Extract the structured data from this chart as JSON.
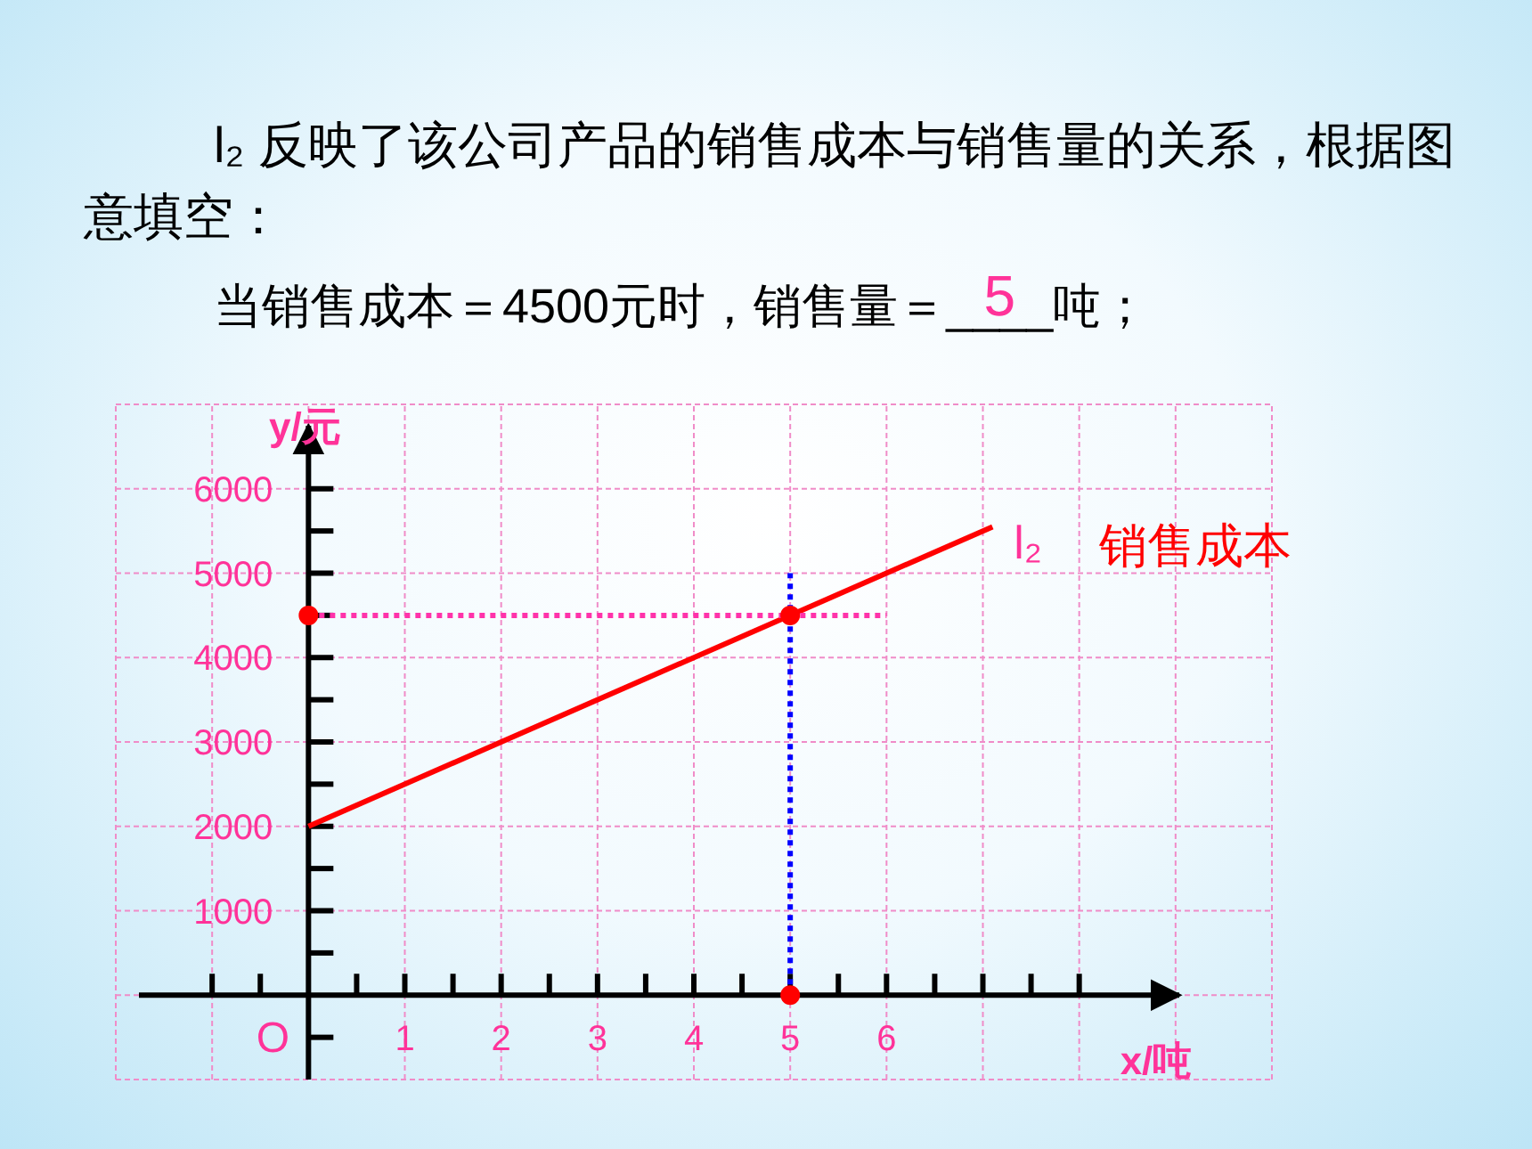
{
  "chart_data": {
    "type": "line",
    "title": "l₂ 反映了该公司产品的销售成本与销售量的关系，根据图意填空：",
    "subtitle": "当销售成本＝4500元时，销售量＝____吨；",
    "xlabel": "x/吨",
    "ylabel": "y/元",
    "annotations": [
      "5",
      "销售成本",
      "O"
    ],
    "xlim": [
      -2,
      10
    ],
    "ylim": [
      -1000,
      7000
    ],
    "xticks": [
      {
        "value": -1,
        "label": null
      },
      {
        "value": -0.5,
        "label": null
      },
      {
        "value": 0,
        "label": null
      },
      {
        "value": 0.5,
        "label": null
      },
      1,
      {
        "value": 1.5,
        "label": null
      },
      2,
      {
        "value": 2.5,
        "label": null
      },
      3,
      {
        "value": 3.5,
        "label": null
      },
      4,
      {
        "value": 4.5,
        "label": null
      },
      5,
      {
        "value": 5.5,
        "label": null
      },
      6,
      {
        "value": 6.5,
        "label": null
      },
      {
        "value": 7,
        "label": null
      },
      {
        "value": 7.5,
        "label": null
      },
      {
        "value": 8,
        "label": null
      }
    ],
    "yticks": [
      {
        "value": -500,
        "label": null
      },
      {
        "value": 500,
        "label": null
      },
      1000,
      {
        "value": 1500,
        "label": null
      },
      2000,
      {
        "value": 2500,
        "label": null
      },
      3000,
      {
        "value": 3500,
        "label": null
      },
      4000,
      {
        "value": 4500,
        "label": null
      },
      5000,
      {
        "value": 5500,
        "label": null
      },
      6000
    ],
    "grid": true,
    "series": [
      {
        "name": "l₂",
        "color": "#ff0000",
        "x": [
          0,
          7.1
        ],
        "values": [
          2000,
          5550
        ]
      },
      {
        "type": "line",
        "color": "#ff33aa",
        "line_style": "dotted",
        "x": [
          0,
          6
        ],
        "values": [
          4500,
          4500
        ]
      },
      {
        "type": "line",
        "color": "#0000ff",
        "line_style": "dotted",
        "x": [
          5,
          5
        ],
        "values": [
          0,
          5000
        ]
      },
      {
        "type": "scatter",
        "color": "#ff0000",
        "marker": "circle",
        "x": [
          0,
          5,
          5
        ],
        "values": [
          4500,
          4500,
          0
        ]
      }
    ]
  }
}
